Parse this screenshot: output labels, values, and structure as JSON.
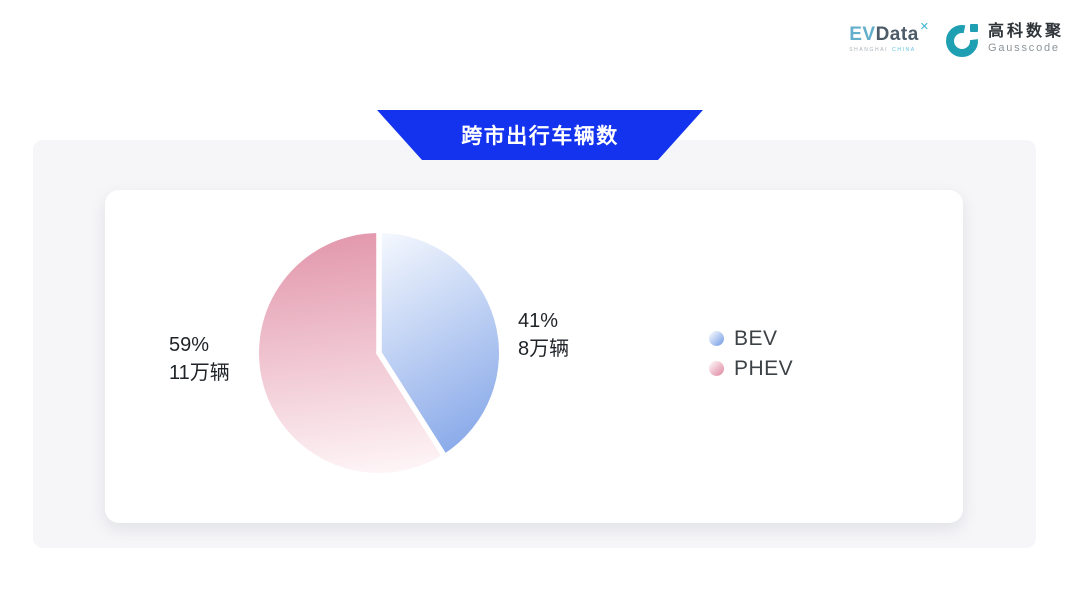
{
  "header": {
    "evdata": {
      "part1": "EV",
      "part2": "Data",
      "superscript": "✕",
      "subtext_left": "SHANGHAI",
      "subtext_right": "CHINA"
    },
    "gausscode": {
      "name_cn": "高科数聚",
      "name_en": "Gausscode",
      "icon_color": "#1e9fb2"
    }
  },
  "banner": {
    "title": "跨市出行车辆数",
    "color": "#1433ee",
    "text_color": "#ffffff"
  },
  "chart_data": {
    "type": "pie",
    "title": "跨市出行车辆数",
    "unit": "万辆",
    "start_angle": "top",
    "direction": "clockwise",
    "slice_gap_color": "#ffffff",
    "legend_position": "right",
    "series": [
      {
        "name": "BEV",
        "percent": 41,
        "value": 8,
        "pct_label": "41%",
        "value_label": "8万辆",
        "gradient_start": "#fafcff",
        "gradient_end": "#84a6e8"
      },
      {
        "name": "PHEV",
        "percent": 59,
        "value": 11,
        "pct_label": "59%",
        "value_label": "11万辆",
        "gradient_start": "#e296ab",
        "gradient_end": "#fef6f8"
      }
    ],
    "legend": [
      "BEV",
      "PHEV"
    ]
  }
}
